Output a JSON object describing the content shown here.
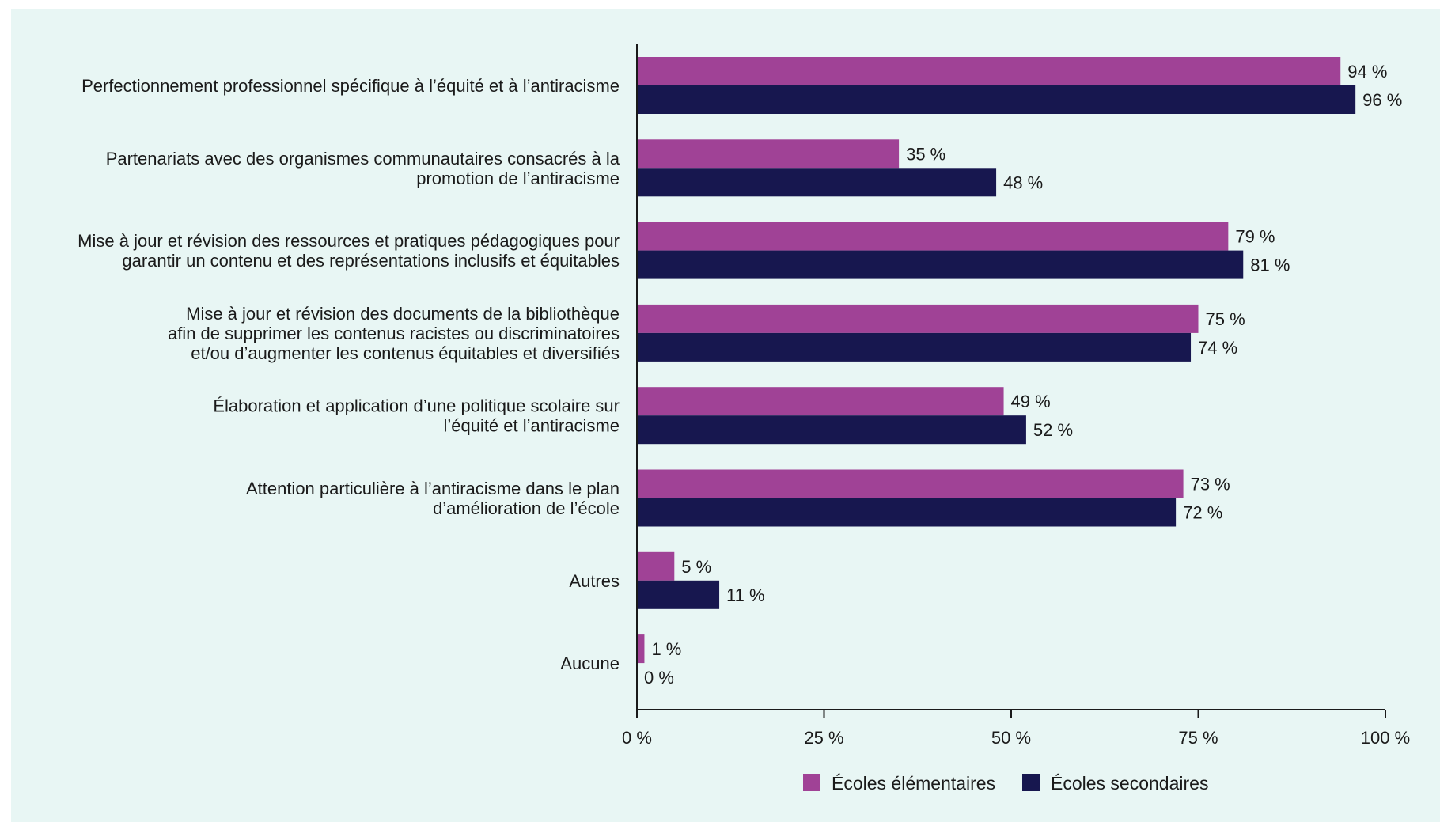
{
  "chart_data": {
    "type": "bar",
    "orientation": "horizontal",
    "categories": [
      [
        "Perfectionnement professionnel spécifique à l’équité et à l’antiracisme"
      ],
      [
        "Partenariats avec des organismes communautaires consacrés à la",
        "promotion de l’antiracisme"
      ],
      [
        "Mise à jour et révision des ressources et pratiques pédagogiques pour",
        "garantir un contenu et des représentations inclusifs et équitables"
      ],
      [
        "Mise à jour et révision des documents de la bibliothèque",
        "afin de supprimer les contenus racistes ou discriminatoires",
        "et/ou d’augmenter les contenus équitables et diversifiés"
      ],
      [
        "Élaboration et application d’une politique scolaire sur",
        "l’équité et l’antiracisme"
      ],
      [
        "Attention particulière à l’antiracisme dans le plan",
        "d’amélioration de l’école"
      ],
      [
        "Autres"
      ],
      [
        "Aucune"
      ]
    ],
    "series": [
      {
        "name": "Écoles élémentaires",
        "color": "#a04296",
        "values": [
          94,
          35,
          79,
          75,
          49,
          73,
          5,
          1
        ],
        "labels": [
          "94 %",
          "35 %",
          "79 %",
          "75 %",
          "49 %",
          "73 %",
          "5 %",
          "1 %"
        ]
      },
      {
        "name": "Écoles secondaires",
        "color": "#17174f",
        "values": [
          96,
          48,
          81,
          74,
          52,
          72,
          11,
          0
        ],
        "labels": [
          "96 %",
          "48 %",
          "81 %",
          "74 %",
          "52 %",
          "72 %",
          "11 %",
          "0 %"
        ]
      }
    ],
    "xlim": [
      0,
      100
    ],
    "xticks": [
      0,
      25,
      50,
      75,
      100
    ],
    "xtick_labels": [
      "0 %",
      "25 %",
      "50 %",
      "75 %",
      "100 %"
    ],
    "legend_position": "bottom-center",
    "grid": false,
    "background_color": "#e8f6f4"
  }
}
